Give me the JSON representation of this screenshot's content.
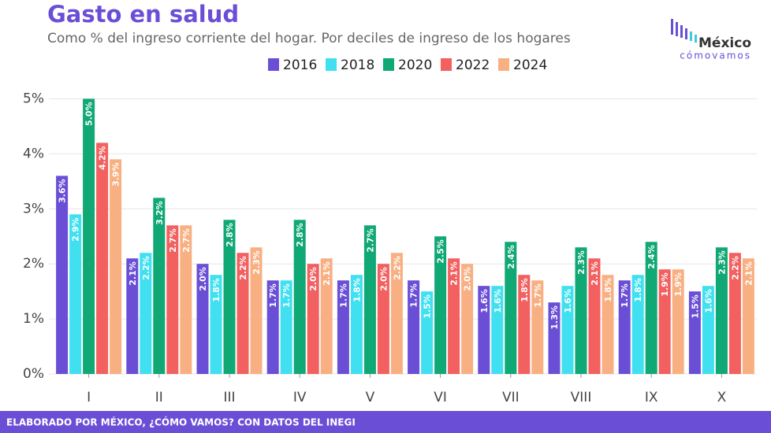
{
  "chart_data": {
    "type": "bar",
    "title": "Gasto en salud",
    "subtitle": "Como % del ingreso corriente del hogar. Por deciles de ingreso de los hogares",
    "logo": {
      "top": "México",
      "bottom": "cómovamos"
    },
    "footer": "ELABORADO POR MÉXICO, ¿CÓMO VAMOS? CON DATOS DEL INEGI",
    "categories": [
      "I",
      "II",
      "III",
      "IV",
      "V",
      "VI",
      "VII",
      "VIII",
      "IX",
      "X"
    ],
    "series": [
      {
        "name": "2016",
        "color": "#6a4fd6",
        "values": [
          3.6,
          2.1,
          2.0,
          1.7,
          1.7,
          1.7,
          1.6,
          1.3,
          1.7,
          1.5
        ],
        "value_labels": [
          "3.6%",
          "2.1%",
          "2.0%",
          "1.7%",
          "1.7%",
          "1.7%",
          "1.6%",
          "1.3%",
          "1.7%",
          "1.5%"
        ]
      },
      {
        "name": "2018",
        "color": "#40e0f0",
        "values": [
          2.9,
          2.2,
          1.8,
          1.7,
          1.8,
          1.5,
          1.6,
          1.6,
          1.8,
          1.6
        ],
        "value_labels": [
          "2.9%",
          "2.2%",
          "1.8%",
          "1.7%",
          "1.8%",
          "1.5%",
          "1.6%",
          "1.6%",
          "1.8%",
          "1.6%"
        ]
      },
      {
        "name": "2020",
        "color": "#10a874",
        "values": [
          5.0,
          3.2,
          2.8,
          2.8,
          2.7,
          2.5,
          2.4,
          2.3,
          2.4,
          2.3
        ],
        "value_labels": [
          "5.0%",
          "3.2%",
          "2.8%",
          "2.8%",
          "2.7%",
          "2.5%",
          "2.4%",
          "2.3%",
          "2.4%",
          "2.3%"
        ]
      },
      {
        "name": "2022",
        "color": "#f26060",
        "values": [
          4.2,
          2.7,
          2.2,
          2.0,
          2.0,
          2.1,
          1.8,
          2.1,
          1.9,
          2.2
        ],
        "value_labels": [
          "4.2%",
          "2.7%",
          "2.2%",
          "2.0%",
          "2.0%",
          "2.1%",
          "1.8%",
          "2.1%",
          "1.9%",
          "2.2%"
        ]
      },
      {
        "name": "2024",
        "color": "#f8b083",
        "values": [
          3.9,
          2.7,
          2.3,
          2.1,
          2.2,
          2.0,
          1.7,
          1.8,
          1.9,
          2.1
        ],
        "value_labels": [
          "3.9%",
          "2.7%",
          "2.3%",
          "2.1%",
          "2.2%",
          "2.0%",
          "1.7%",
          "1.8%",
          "1.9%",
          "2.1%"
        ]
      }
    ],
    "ylim": [
      0,
      5.15
    ],
    "yticks": [
      {
        "value": 0,
        "label": "0%"
      },
      {
        "value": 1,
        "label": "1%"
      },
      {
        "value": 2,
        "label": "2%"
      },
      {
        "value": 3,
        "label": "3%"
      },
      {
        "value": 4,
        "label": "4%"
      },
      {
        "value": 5,
        "label": "5%"
      }
    ],
    "grid": true
  }
}
